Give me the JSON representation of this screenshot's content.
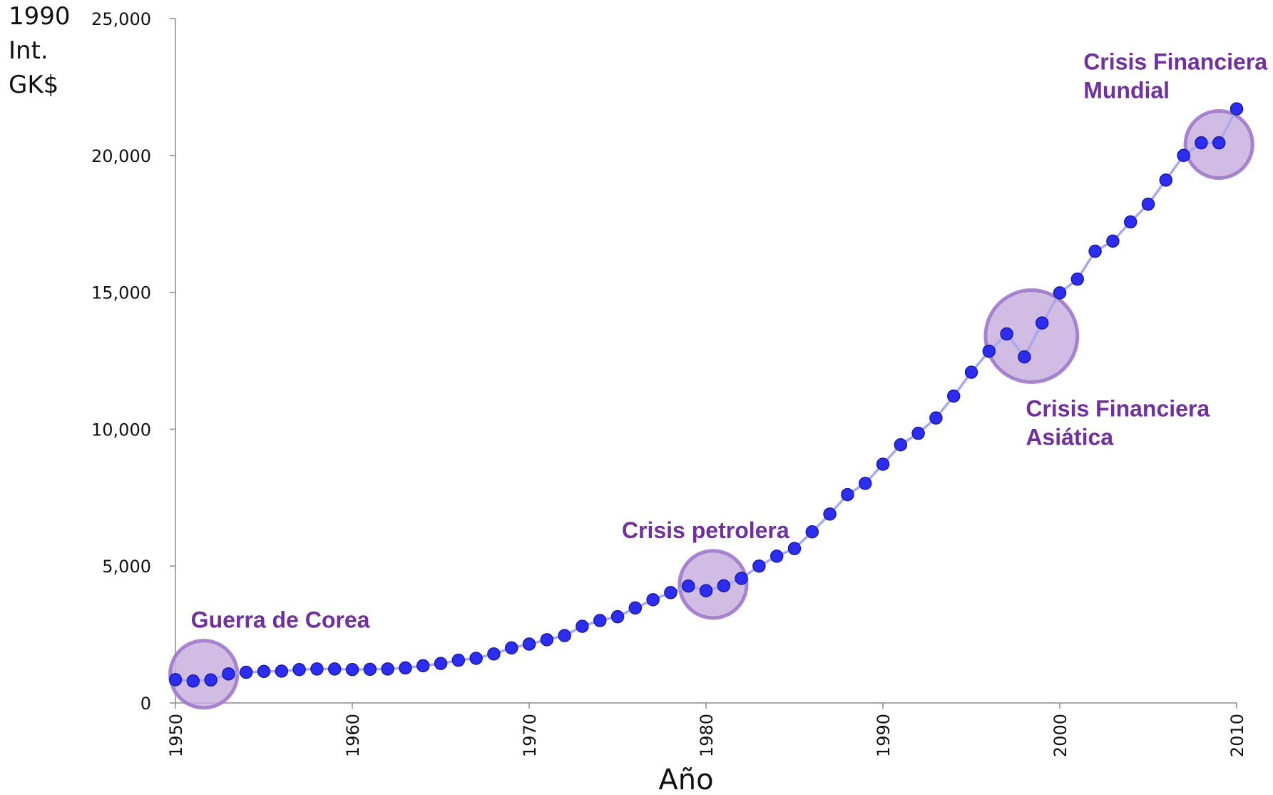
{
  "chart_data": {
    "type": "line",
    "title": "",
    "ylabel_lines": [
      "1990",
      "Int.",
      "GK$"
    ],
    "xlabel": "Año",
    "xlim": [
      1950,
      2010
    ],
    "ylim": [
      0,
      25000
    ],
    "x_ticks": [
      1950,
      1960,
      1970,
      1980,
      1990,
      2000,
      2010
    ],
    "y_ticks": [
      0,
      5000,
      10000,
      15000,
      20000,
      25000
    ],
    "y_tick_labels": [
      "0",
      "5,000",
      "10,000",
      "15,000",
      "20,000",
      "25,000"
    ],
    "grid": false,
    "colors": {
      "line": "#a9a8ef",
      "point": "#2d2df2",
      "point_stroke": "#1a1aa8",
      "highlight_fill": "#c9b2de",
      "highlight_stroke": "#9b73c9",
      "annotation": "#7030a0"
    },
    "series": [
      {
        "x": [
          1950,
          1951,
          1952,
          1953,
          1954,
          1955,
          1956,
          1957,
          1958,
          1959,
          1960,
          1961,
          1962,
          1963,
          1964,
          1965,
          1966,
          1967,
          1968,
          1969,
          1970,
          1971,
          1972,
          1973,
          1974,
          1975,
          1976,
          1977,
          1978,
          1979,
          1980,
          1981,
          1982,
          1983,
          1984,
          1985,
          1986,
          1987,
          1988,
          1989,
          1990,
          1991,
          1992,
          1993,
          1994,
          1995,
          1996,
          1997,
          1998,
          1999,
          2000,
          2001,
          2002,
          2003,
          2004,
          2005,
          2006,
          2007,
          2008,
          2009,
          2010
        ],
        "values": [
          850,
          800,
          840,
          1060,
          1120,
          1150,
          1160,
          1220,
          1240,
          1240,
          1220,
          1230,
          1240,
          1280,
          1360,
          1440,
          1560,
          1630,
          1790,
          2010,
          2150,
          2310,
          2460,
          2800,
          3010,
          3150,
          3470,
          3770,
          4030,
          4270,
          4100,
          4280,
          4550,
          5000,
          5360,
          5640,
          6250,
          6900,
          7610,
          8020,
          8720,
          9430,
          9850,
          10410,
          11210,
          12080,
          12850,
          13480,
          12640,
          13880,
          14980,
          15480,
          16500,
          16870,
          17570,
          18220,
          19100,
          20000,
          20460,
          20460,
          21700
        ]
      }
    ],
    "highlights": [
      {
        "label": "Guerra de Corea",
        "center_year": 1951.6,
        "center_value": 1050,
        "radius_years": 1.9,
        "label_anchor": "above"
      },
      {
        "label": "Crisis petrolera",
        "center_year": 1980.4,
        "center_value": 4330,
        "radius_years": 1.9,
        "label_anchor": "above"
      },
      {
        "label": "Crisis Financiera Asiática",
        "center_year": 1998.4,
        "center_value": 13400,
        "radius_years": 2.6,
        "label_anchor": "below"
      },
      {
        "label": "Crisis Financiera Mundial",
        "center_year": 2009.0,
        "center_value": 20400,
        "radius_years": 1.9,
        "label_anchor": "above"
      }
    ],
    "annotation_lines": [
      [
        "Guerra de Corea"
      ],
      [
        "Crisis petrolera"
      ],
      [
        "Crisis Financiera",
        "Asiática"
      ],
      [
        "Crisis Financiera",
        "Mundial"
      ]
    ]
  }
}
